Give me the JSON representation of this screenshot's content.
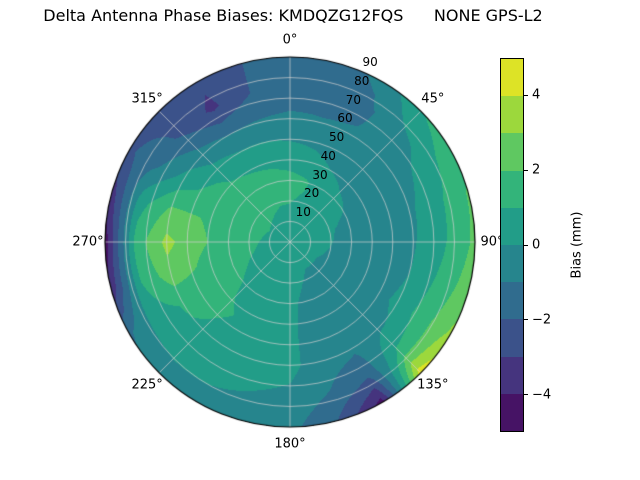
{
  "title": "Delta Antenna Phase Biases: KMDQZG12FQS      NONE GPS-L2",
  "colorbar": {
    "label": "Bias (mm)",
    "vmin": -5,
    "vmax": 5,
    "ticks": [
      {
        "value": 4,
        "label": "4"
      },
      {
        "value": 2,
        "label": "2"
      },
      {
        "value": 0,
        "label": "0"
      },
      {
        "value": -2,
        "label": "−2"
      },
      {
        "value": -4,
        "label": "−4"
      }
    ]
  },
  "chart_data": {
    "type": "heatmap",
    "subtype": "polar_filled_contour",
    "title": "Delta Antenna Phase Biases: KMDQZG12FQS      NONE GPS-L2",
    "units": "mm",
    "theta_zero": "top",
    "theta_direction": "clockwise",
    "levels": [
      -5,
      -4,
      -3,
      -2,
      -1,
      0,
      1,
      2,
      3,
      4,
      5
    ],
    "colormap": "viridis",
    "colormap_stops": [
      "#440154",
      "#482475",
      "#414487",
      "#355f8d",
      "#2a788e",
      "#21918c",
      "#22a884",
      "#44bf70",
      "#7ad151",
      "#bddf26",
      "#fde725"
    ],
    "theta_ticks": [
      {
        "deg": 0,
        "label": "0°"
      },
      {
        "deg": 45,
        "label": "45°"
      },
      {
        "deg": 90,
        "label": "90°"
      },
      {
        "deg": 135,
        "label": "135°"
      },
      {
        "deg": 180,
        "label": "180°"
      },
      {
        "deg": 225,
        "label": "225°"
      },
      {
        "deg": 270,
        "label": "270°"
      },
      {
        "deg": 315,
        "label": "315°"
      }
    ],
    "r_ticks": [
      {
        "value": 10,
        "label": "10"
      },
      {
        "value": 20,
        "label": "20"
      },
      {
        "value": 30,
        "label": "30"
      },
      {
        "value": 40,
        "label": "40"
      },
      {
        "value": 50,
        "label": "50"
      },
      {
        "value": 60,
        "label": "60"
      },
      {
        "value": 70,
        "label": "70"
      },
      {
        "value": 80,
        "label": "80"
      },
      {
        "value": 90,
        "label": "90"
      }
    ],
    "azimuth_deg": [
      0,
      15,
      30,
      45,
      60,
      75,
      90,
      105,
      120,
      135,
      150,
      165,
      180,
      195,
      210,
      225,
      240,
      255,
      270,
      285,
      300,
      315,
      330,
      345
    ],
    "radius_deg": [
      0,
      15,
      30,
      45,
      60,
      75,
      90
    ],
    "values_mm": [
      [
        0.4,
        0.9,
        1.3,
        0.3,
        -0.8,
        -1.6,
        -1.7
      ],
      [
        0.4,
        0.8,
        1.1,
        0.1,
        -0.9,
        -1.5,
        -1.4
      ],
      [
        0.4,
        0.6,
        0.6,
        -0.3,
        -0.9,
        -1.2,
        -0.8
      ],
      [
        0.4,
        0.4,
        0.2,
        -0.5,
        -0.8,
        -0.3,
        0.9
      ],
      [
        0.4,
        0.3,
        0.0,
        -0.6,
        -0.5,
        0.4,
        1.7
      ],
      [
        0.4,
        0.2,
        -0.2,
        -0.6,
        -0.2,
        0.8,
        2.1
      ],
      [
        0.4,
        0.2,
        -0.3,
        -0.6,
        -0.1,
        0.9,
        2.2
      ],
      [
        0.4,
        0.1,
        -0.4,
        -0.6,
        0.0,
        1.2,
        2.6
      ],
      [
        0.4,
        0.0,
        -0.4,
        -0.5,
        0.2,
        1.6,
        3.2
      ],
      [
        0.4,
        0.0,
        -0.4,
        -0.6,
        -0.2,
        1.2,
        4.6
      ],
      [
        0.4,
        0.0,
        -0.3,
        -0.7,
        -0.8,
        -1.8,
        -4.4
      ],
      [
        0.4,
        0.1,
        -0.1,
        -0.4,
        -0.6,
        -1.0,
        -2.0
      ],
      [
        0.4,
        0.2,
        0.1,
        0.2,
        0.3,
        -0.2,
        -0.7
      ],
      [
        0.4,
        0.3,
        0.4,
        0.6,
        0.5,
        0.0,
        -0.5
      ],
      [
        0.4,
        0.4,
        0.7,
        0.9,
        0.7,
        0.2,
        -0.4
      ],
      [
        0.4,
        0.5,
        0.9,
        1.1,
        0.9,
        0.3,
        -0.5
      ],
      [
        0.4,
        0.7,
        1.2,
        1.4,
        1.1,
        0.4,
        -1.2
      ],
      [
        0.4,
        0.9,
        1.4,
        1.9,
        2.6,
        1.0,
        -3.8
      ],
      [
        0.4,
        1.0,
        1.6,
        2.2,
        3.3,
        1.4,
        -4.6
      ],
      [
        0.4,
        1.1,
        1.7,
        2.0,
        2.2,
        0.6,
        -3.6
      ],
      [
        0.4,
        1.2,
        1.8,
        1.4,
        0.4,
        -1.2,
        -2.2
      ],
      [
        0.4,
        1.1,
        1.6,
        0.8,
        -0.6,
        -2.2,
        -2.4
      ],
      [
        0.4,
        1.0,
        1.5,
        0.6,
        -1.0,
        -3.2,
        -2.8
      ],
      [
        0.4,
        0.9,
        1.4,
        0.5,
        -0.9,
        -2.0,
        -2.0
      ]
    ]
  }
}
